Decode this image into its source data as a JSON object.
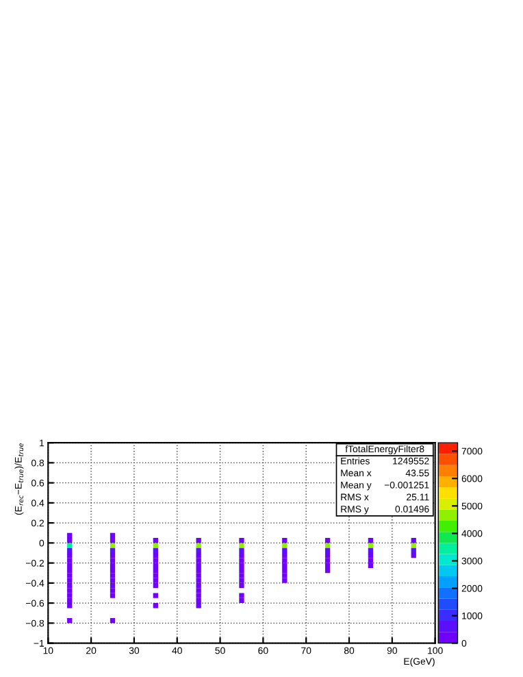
{
  "chart_data": {
    "type": "scatter",
    "marker": "square",
    "title": "fTotalEnergyFilter8",
    "xlabel": "E(GeV)",
    "ylabel": "(E$_{rec}$−E$_{true}$)/E$_{true}$",
    "annotations": [
      "Entries",
      "1249552",
      "Mean x",
      "43.55",
      "Mean y",
      "−0.001251",
      "RMS x",
      "25.11",
      "RMS y",
      "0.01496"
    ],
    "x": [
      15,
      25,
      15,
      25,
      35,
      45,
      55,
      65,
      75,
      85,
      95,
      15,
      25,
      35,
      45,
      55,
      65,
      75,
      85,
      95,
      15,
      25,
      35,
      45,
      55,
      65,
      75,
      85,
      95,
      15,
      25,
      35,
      45,
      55,
      65,
      75,
      85,
      95,
      15,
      25,
      35,
      45,
      55,
      65,
      75,
      85,
      15,
      25,
      35,
      45,
      55,
      65,
      75,
      85,
      15,
      25,
      35,
      45,
      55,
      65,
      75,
      15,
      25,
      35,
      45,
      55,
      65,
      15,
      25,
      35,
      45,
      55,
      65,
      15,
      25,
      35,
      45,
      55,
      15,
      25,
      45,
      15,
      25,
      35,
      45,
      55,
      15,
      45,
      55,
      15,
      35,
      45,
      15,
      25
    ],
    "values": [
      0.075,
      0.075,
      0.025,
      0.025,
      0.025,
      0.025,
      0.025,
      0.025,
      0.025,
      0.025,
      0.025,
      -0.025,
      -0.025,
      -0.025,
      -0.025,
      -0.025,
      -0.025,
      -0.025,
      -0.025,
      -0.025,
      -0.075,
      -0.075,
      -0.075,
      -0.075,
      -0.075,
      -0.075,
      -0.075,
      -0.075,
      -0.075,
      -0.125,
      -0.125,
      -0.125,
      -0.125,
      -0.125,
      -0.125,
      -0.125,
      -0.125,
      -0.125,
      -0.175,
      -0.175,
      -0.175,
      -0.175,
      -0.175,
      -0.175,
      -0.175,
      -0.175,
      -0.225,
      -0.225,
      -0.225,
      -0.225,
      -0.225,
      -0.225,
      -0.225,
      -0.225,
      -0.275,
      -0.275,
      -0.275,
      -0.275,
      -0.275,
      -0.275,
      -0.275,
      -0.325,
      -0.325,
      -0.325,
      -0.325,
      -0.325,
      -0.325,
      -0.375,
      -0.375,
      -0.375,
      -0.375,
      -0.375,
      -0.375,
      -0.425,
      -0.425,
      -0.425,
      -0.425,
      -0.425,
      -0.475,
      -0.475,
      -0.475,
      -0.525,
      -0.525,
      -0.525,
      -0.525,
      -0.525,
      -0.575,
      -0.575,
      -0.575,
      -0.625,
      -0.625,
      -0.625,
      -0.775,
      -0.775
    ],
    "cvalues": [
      20,
      10,
      300,
      300,
      300,
      300,
      300,
      300,
      300,
      400,
      400,
      3500,
      4800,
      4800,
      4800,
      4800,
      4800,
      4800,
      4800,
      4800,
      600,
      500,
      500,
      500,
      500,
      500,
      500,
      500,
      500,
      300,
      250,
      250,
      250,
      250,
      200,
      200,
      200,
      100,
      150,
      150,
      150,
      150,
      150,
      100,
      100,
      100,
      60,
      50,
      50,
      50,
      50,
      40,
      40,
      40,
      40,
      40,
      30,
      30,
      30,
      30,
      20,
      30,
      30,
      20,
      20,
      20,
      20,
      20,
      20,
      20,
      10,
      10,
      20,
      20,
      10,
      10,
      10,
      10,
      10,
      10,
      10,
      10,
      10,
      10,
      10,
      10,
      10,
      10,
      10,
      10,
      10,
      10,
      10,
      10
    ],
    "xlim": [
      10,
      100
    ],
    "xticks": [
      10,
      20,
      30,
      40,
      50,
      60,
      70,
      80,
      90,
      100
    ],
    "ylim": [
      -1,
      1
    ],
    "yticks": [
      -1,
      -0.8,
      -0.6,
      -0.4,
      -0.2,
      0,
      0.2,
      0.4,
      0.6,
      0.8,
      1
    ],
    "clim": [
      0,
      7300
    ],
    "cticks": [
      0,
      1000,
      2000,
      3000,
      4000,
      5000,
      6000,
      7000
    ],
    "grid": true
  }
}
